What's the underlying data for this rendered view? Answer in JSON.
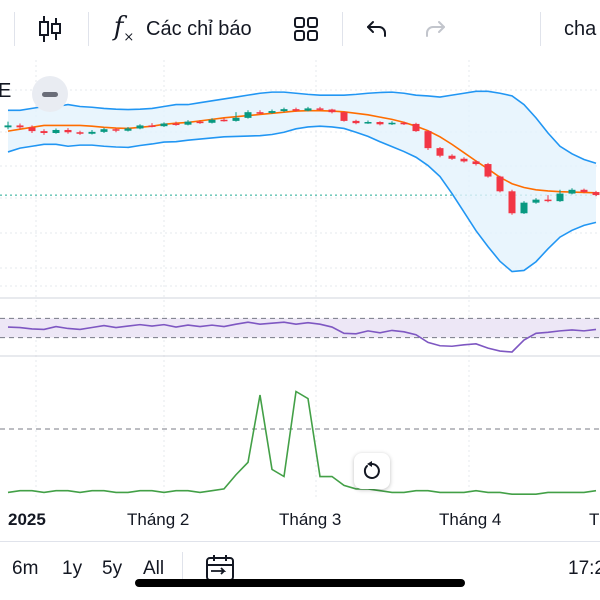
{
  "toolbar": {
    "indicators_label": "Các chỉ báo",
    "right_label": "cha",
    "icons": [
      "candlestick-icon",
      "fx-icon",
      "layout-grid-icon",
      "undo-icon",
      "redo-icon"
    ]
  },
  "legend": {
    "label": "E"
  },
  "colors": {
    "up": "#26a69a",
    "upCandle": "#089981",
    "down": "#f23645",
    "bbBand": "#2196f3",
    "bbFill": "#e3f2fd",
    "basis": "#ff6d00",
    "rsi": "#7e57c2",
    "rsiFill": "#ede7f6",
    "volumeLine": "#43a047",
    "lastPrice": "#22ab94"
  },
  "chart_data": {
    "type": "candlestick",
    "x_ticks": [
      "2025",
      "Tháng 2",
      "Tháng 3",
      "Tháng 4",
      "T"
    ],
    "indicators": [
      "Bollinger Bands",
      "RSI",
      "Line"
    ],
    "last_price_line": "dotted",
    "price": {
      "upper": [
        76,
        76,
        76.5,
        77,
        77,
        77.5,
        77,
        76.8,
        76.5,
        76.3,
        76.2,
        76.3,
        76.5,
        77,
        77.5,
        77.5,
        78,
        78.5,
        79,
        79.5,
        80,
        80.5,
        80.8,
        80.8,
        80.5,
        80.2,
        80,
        80,
        80,
        80.2,
        80.5,
        80.7,
        80.8,
        80.5,
        80,
        79.8,
        79.5,
        80,
        80.5,
        81,
        81,
        80.5,
        79.8,
        77.5,
        74,
        70,
        66.5,
        64.5,
        63,
        62
      ],
      "basis": [
        70.5,
        71,
        71.5,
        72,
        72,
        72,
        72,
        71.8,
        71.5,
        71.3,
        71.2,
        71.5,
        71.8,
        72.3,
        72.6,
        72.8,
        73.2,
        73.6,
        74,
        74.3,
        74.6,
        74.9,
        75.2,
        75.5,
        75.8,
        75.9,
        75.9,
        75.8,
        75.6,
        75.2,
        74.8,
        74.2,
        73.6,
        72.8,
        71.8,
        70.6,
        69,
        67,
        64.8,
        62.6,
        60.5,
        58.3,
        56.6,
        55.6,
        55,
        54.7,
        54.5,
        54.4,
        54.3,
        54.2
      ],
      "lower": [
        65,
        66,
        66.5,
        67,
        67,
        66.5,
        66.8,
        66.8,
        66.5,
        66.3,
        66.2,
        66.7,
        67.1,
        67.6,
        67.7,
        68.1,
        68.4,
        68.7,
        69,
        69.1,
        69.2,
        69.3,
        69.6,
        70.2,
        71.1,
        71.6,
        71.8,
        71.6,
        71.2,
        70.2,
        69.1,
        67.7,
        66.4,
        65.1,
        63.6,
        61.4,
        58.5,
        54,
        49.1,
        44.2,
        40,
        36.1,
        33.4,
        33.7,
        36,
        39.4,
        42.5,
        44.3,
        45.6,
        46.4
      ],
      "candles": [
        [
          71.5,
          72,
          73,
          71
        ],
        [
          72,
          71.5,
          72.5,
          71
        ],
        [
          71.5,
          70.5,
          72,
          70
        ],
        [
          70.5,
          70,
          71,
          69.5
        ],
        [
          70,
          70.8,
          71.2,
          69.8
        ],
        [
          70.8,
          70.2,
          71.3,
          69.8
        ],
        [
          70.2,
          69.8,
          70.6,
          69.5
        ],
        [
          69.8,
          70.3,
          70.8,
          69.6
        ],
        [
          70.3,
          71,
          71.4,
          70
        ],
        [
          71,
          70.6,
          71.3,
          70.2
        ],
        [
          70.6,
          71.2,
          71.6,
          70.4
        ],
        [
          71.2,
          72,
          72.3,
          71
        ],
        [
          72,
          71.8,
          72.6,
          71.5
        ],
        [
          71.8,
          72.5,
          72.8,
          71.6
        ],
        [
          72.5,
          72.2,
          73,
          71.9
        ],
        [
          72.2,
          73,
          73.4,
          72
        ],
        [
          73,
          72.7,
          73.4,
          72.4
        ],
        [
          72.7,
          73.5,
          73.9,
          72.5
        ],
        [
          73.5,
          73.2,
          74,
          73
        ],
        [
          73.2,
          74,
          75.5,
          73
        ],
        [
          74,
          75.5,
          76,
          73.8
        ],
        [
          75.5,
          75.3,
          76,
          75
        ],
        [
          75.3,
          75.8,
          76.2,
          75.1
        ],
        [
          75.8,
          76.3,
          76.7,
          75.5
        ],
        [
          76.3,
          75.9,
          76.7,
          75.6
        ],
        [
          75.9,
          76.5,
          76.9,
          75.7
        ],
        [
          76.5,
          76.2,
          76.9,
          75.9
        ],
        [
          76.2,
          75.5,
          76.4,
          75.2
        ],
        [
          75.5,
          73.2,
          75.7,
          73
        ],
        [
          73.2,
          72.6,
          73.5,
          72.3
        ],
        [
          72.6,
          72.9,
          73.3,
          72.4
        ],
        [
          72.9,
          72.3,
          73.1,
          72
        ],
        [
          72.3,
          72.7,
          73.1,
          72.1
        ],
        [
          72.7,
          72.4,
          73,
          72.1
        ],
        [
          72.4,
          70.5,
          72.7,
          70.3
        ],
        [
          70.5,
          66,
          70.7,
          65.5
        ],
        [
          66,
          64,
          66.3,
          63.6
        ],
        [
          64,
          63.2,
          64.4,
          62.9
        ],
        [
          63.2,
          62.5,
          63.6,
          62.2
        ],
        [
          62.5,
          61.8,
          62.8,
          61.4
        ],
        [
          61.8,
          58.5,
          62.1,
          58.2
        ],
        [
          58.5,
          54.6,
          58.7,
          54.3
        ],
        [
          54.6,
          48.8,
          55,
          48.4
        ],
        [
          48.8,
          51.6,
          52,
          48.6
        ],
        [
          51.6,
          52.4,
          52.8,
          51.3
        ],
        [
          52.4,
          52,
          53.6,
          51.7
        ],
        [
          52,
          54,
          55,
          51.8
        ],
        [
          54,
          55,
          55.4,
          53.8
        ],
        [
          55,
          54.4,
          55.3,
          54.1
        ],
        [
          54.4,
          53.6,
          54.7,
          53.3
        ]
      ]
    },
    "rsi": {
      "upper_band": 70,
      "lower_band": 30,
      "values": [
        52,
        51,
        48,
        47,
        53,
        49,
        47,
        51,
        55,
        51,
        54,
        57,
        54,
        57,
        52,
        56,
        53,
        56,
        53,
        58,
        62,
        58,
        60,
        62,
        58,
        61,
        58,
        52,
        39,
        38,
        44,
        40,
        45,
        42,
        36,
        20,
        13,
        12,
        15,
        17,
        8,
        2,
        0,
        25,
        39,
        41,
        44,
        46,
        44,
        47
      ]
    },
    "volume_line": {
      "values": [
        2,
        3,
        3,
        2,
        3,
        3,
        2,
        3,
        3,
        2,
        2,
        3,
        3,
        2,
        3,
        3,
        2,
        3,
        4,
        12,
        19,
        57,
        15,
        11,
        59,
        55,
        11,
        11,
        6,
        4,
        4,
        3,
        2,
        2,
        3,
        3,
        2,
        2,
        2,
        3,
        2,
        2,
        1,
        1,
        1,
        2,
        2,
        2,
        2,
        3
      ]
    }
  },
  "bottom_bar": {
    "ranges": [
      "6m",
      "1y",
      "5y",
      "All"
    ],
    "time": "17:2"
  }
}
